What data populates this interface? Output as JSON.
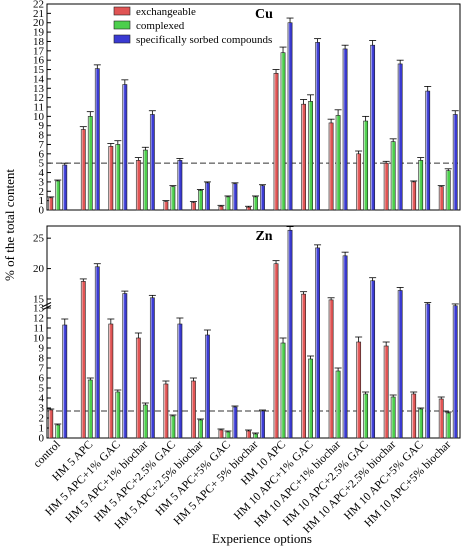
{
  "figure": {
    "ylabel": "% of the total content",
    "xlabel": "Experience options",
    "categories": [
      "control",
      "HM 5 APC",
      "HM 5 APC+1% GAC",
      "HM 5 APC+1% biochar",
      "HM 5 APC+2.5% GAC",
      "HM 5 APC+2.5% biochar",
      "HM 5 APC+5% GAC",
      "HM 5 APC+ 5% biochar",
      "HM 10 APC",
      "HM 10 APC+1% GAC",
      "HM 10 APC+1% biochar",
      "HM 10 APC+2.5% GAC",
      "HM 10 APC+2.5% biochar",
      "HM 10 APC+5% GAC",
      "HM 10 APC+5% biochar"
    ],
    "legend": {
      "position": "top-left",
      "entries": [
        "exchangeable",
        "complexed",
        "specifically sorbed compounds"
      ]
    },
    "colors": {
      "exchangeable": "#e05454",
      "complexed": "#4ccf4c",
      "specifically sorbed compounds": "#3a3ad2",
      "reference_line": "#333333"
    }
  },
  "chart_data": [
    {
      "type": "bar",
      "title": "Cu",
      "ylim": [
        0,
        22
      ],
      "yticks": [
        0,
        1,
        2,
        3,
        4,
        5,
        6,
        7,
        8,
        9,
        10,
        11,
        12,
        13,
        14,
        15,
        16,
        17,
        18,
        19,
        20,
        21,
        22
      ],
      "reference_line": 5,
      "grid": false,
      "series": [
        {
          "name": "exchangeable",
          "values": [
            1.3,
            8.6,
            6.8,
            5.3,
            0.9,
            0.8,
            0.4,
            0.3,
            14.6,
            11.3,
            9.3,
            6.0,
            5.0,
            3.0,
            2.5
          ],
          "errors": [
            0.1,
            0.3,
            0.3,
            0.3,
            0.1,
            0.1,
            0.1,
            0.1,
            0.4,
            0.5,
            0.4,
            0.3,
            0.2,
            0.1,
            0.1
          ]
        },
        {
          "name": "complexed",
          "values": [
            3.1,
            10.0,
            7.0,
            6.4,
            2.5,
            2.1,
            1.4,
            1.4,
            16.8,
            11.6,
            10.1,
            9.5,
            7.3,
            5.3,
            4.2
          ],
          "errors": [
            0.1,
            0.5,
            0.4,
            0.3,
            0.1,
            0.1,
            0.1,
            0.1,
            0.6,
            0.7,
            0.6,
            0.5,
            0.3,
            0.3,
            0.2
          ]
        },
        {
          "name": "specifically sorbed compounds",
          "values": [
            4.8,
            15.1,
            13.4,
            10.2,
            5.3,
            2.9,
            2.8,
            2.6,
            20.0,
            17.9,
            17.2,
            17.6,
            15.6,
            12.7,
            10.2
          ],
          "errors": [
            0.2,
            0.4,
            0.5,
            0.4,
            0.2,
            0.1,
            0.1,
            0.1,
            0.5,
            0.4,
            0.4,
            0.5,
            0.4,
            0.5,
            0.4
          ]
        }
      ]
    },
    {
      "type": "bar",
      "title": "Zn",
      "yticks_labels": [
        "0",
        "1",
        "2",
        "3",
        "4",
        "5",
        "6",
        "7",
        "8",
        "9",
        "10",
        "11",
        "12",
        "13",
        "15",
        "20",
        "25"
      ],
      "yticks": [
        0,
        1,
        2,
        3,
        4,
        5,
        6,
        7,
        8,
        9,
        10,
        11,
        12,
        13,
        15,
        20,
        25
      ],
      "ylim": [
        0,
        27
      ],
      "axis_break": [
        13,
        15
      ],
      "reference_line": 2.7,
      "grid": false,
      "series": [
        {
          "name": "exchangeable",
          "values": [
            2.8,
            17.9,
            11.4,
            10.0,
            5.4,
            5.7,
            0.8,
            0.7,
            20.8,
            15.8,
            14.8,
            9.6,
            9.2,
            4.4,
            3.9
          ],
          "errors": [
            0.1,
            0.4,
            0.5,
            0.5,
            0.3,
            0.3,
            0.1,
            0.1,
            0.5,
            0.4,
            0.4,
            0.5,
            0.4,
            0.2,
            0.2
          ]
        },
        {
          "name": "complexed",
          "values": [
            1.3,
            5.8,
            4.6,
            3.3,
            2.2,
            1.8,
            0.6,
            0.4,
            9.5,
            7.9,
            6.7,
            4.4,
            4.1,
            2.9,
            2.5
          ],
          "errors": [
            0.1,
            0.2,
            0.2,
            0.2,
            0.1,
            0.1,
            0.1,
            0.1,
            0.5,
            0.3,
            0.3,
            0.2,
            0.2,
            0.1,
            0.1
          ]
        },
        {
          "name": "specifically sorbed compounds",
          "values": [
            11.3,
            20.3,
            15.9,
            15.2,
            11.4,
            10.3,
            3.1,
            2.7,
            26.3,
            23.4,
            22.1,
            18.0,
            16.4,
            13.9,
            13.5
          ],
          "errors": [
            0.6,
            0.5,
            0.4,
            0.4,
            0.6,
            0.5,
            0.1,
            0.1,
            0.6,
            0.5,
            0.6,
            0.5,
            0.5,
            0.3,
            0.4
          ]
        }
      ]
    }
  ]
}
